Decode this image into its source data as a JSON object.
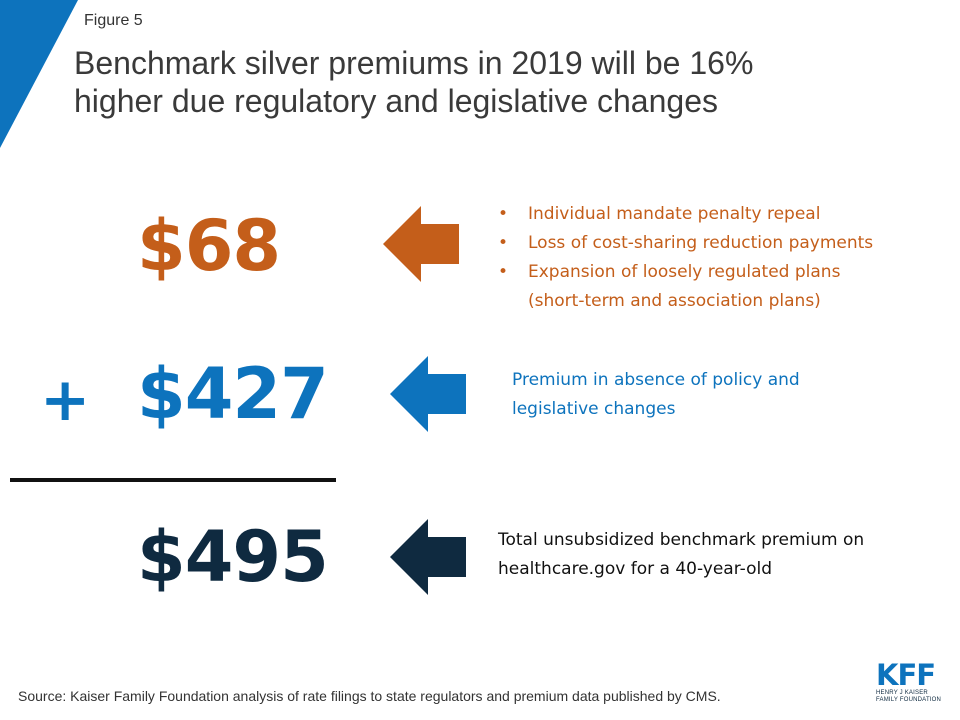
{
  "header": {
    "figure_label": "Figure 5",
    "title_line1": "Benchmark silver premiums in 2019 will be 16%",
    "title_line2": "higher due regulatory and legislative changes"
  },
  "rows": [
    {
      "amount": "$68",
      "color": "#c45e1a",
      "bullets": [
        "Individual mandate penalty repeal",
        "Loss of cost-sharing reduction payments",
        "Expansion of loosely regulated plans",
        "(short-term and association plans)"
      ]
    },
    {
      "prefix": "+",
      "amount": "$427",
      "color": "#0d73bd",
      "desc_line1": "Premium in absence of policy and",
      "desc_line2": "legislative changes"
    },
    {
      "amount": "$495",
      "color": "#0f2a40",
      "desc_line1": "Total unsubsidized benchmark premium on",
      "desc_line2": "healthcare.gov for a 40-year-old"
    }
  ],
  "bullet_char": "•",
  "footer": {
    "source": "Source: Kaiser Family Foundation analysis of rate filings to state regulators and premium data published by CMS.",
    "logo_mark": "KFF",
    "logo_line1": "HENRY J KAISER",
    "logo_line2": "FAMILY FOUNDATION"
  },
  "icons": {
    "arrow": "left-arrow-icon"
  },
  "colors": {
    "accent_blue": "#0d73bd",
    "accent_orange": "#c45e1a",
    "navy": "#0f2a40"
  }
}
